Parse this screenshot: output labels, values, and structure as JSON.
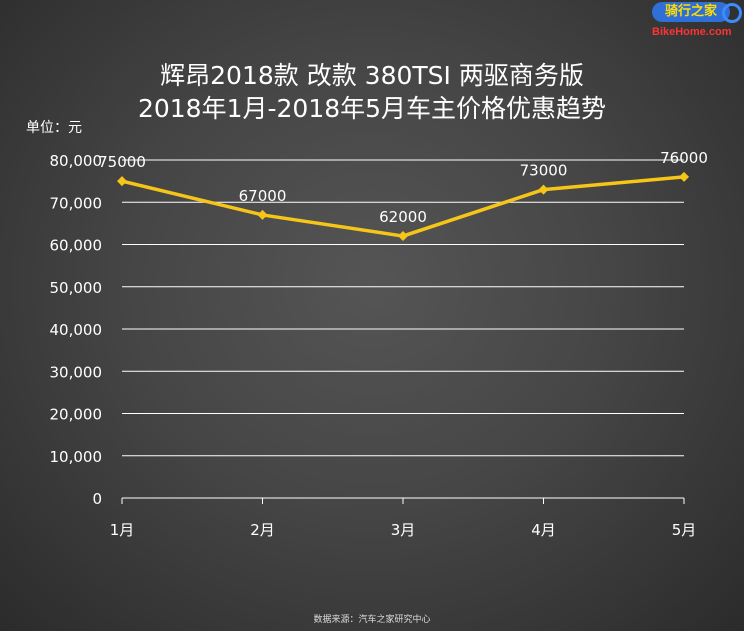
{
  "title_line1": "辉昂2018款 改款 380TSI 两驱商务版",
  "title_line2": "2018年1月-2018年5月车主价格优惠趋势",
  "unit_label": "单位：元",
  "source_note": "数据来源：汽车之家研究中心",
  "logo": {
    "top_text": "骑行之家",
    "bottom_text": "BikeHome.com"
  },
  "colors": {
    "line": "#f5c518",
    "grid": "#ffffff",
    "text": "#ffffff"
  },
  "chart_data": {
    "type": "line",
    "categories": [
      "1月",
      "2月",
      "3月",
      "4月",
      "5月"
    ],
    "series": [
      {
        "values": [
          75000,
          67000,
          62000,
          73000,
          76000
        ]
      }
    ],
    "data_labels": [
      "75000",
      "67000",
      "62000",
      "73000",
      "76000"
    ],
    "y_ticks": [
      "0",
      "10,000",
      "20,000",
      "30,000",
      "40,000",
      "50,000",
      "60,000",
      "70,000",
      "80,000"
    ],
    "y_tick_values": [
      0,
      10000,
      20000,
      30000,
      40000,
      50000,
      60000,
      70000,
      80000
    ],
    "ylim": [
      0,
      80000
    ],
    "grid": true,
    "legend": "none"
  }
}
